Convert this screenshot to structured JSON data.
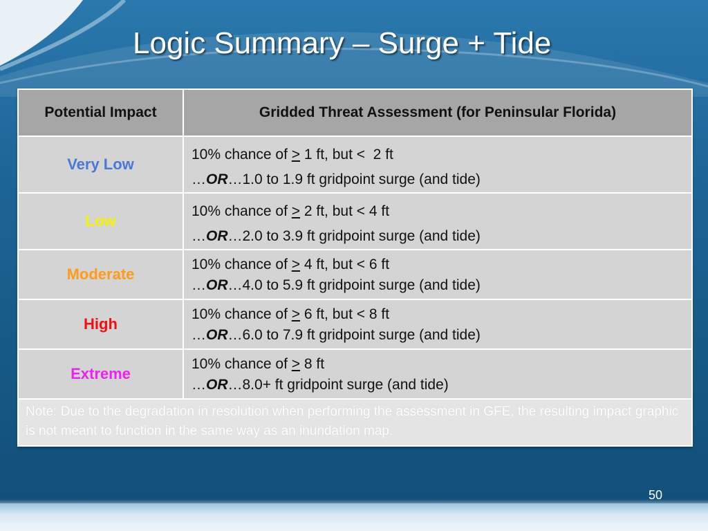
{
  "slide": {
    "title": "Logic Summary – Surge + Tide",
    "page_number": "50"
  },
  "table": {
    "headers": {
      "impact": "Potential Impact",
      "assessment": "Gridded Threat Assessment (for Peninsular Florida)"
    },
    "rows": [
      {
        "level": "Very Low",
        "color": "#4a78d8",
        "line1_pre": "10% chance of ",
        "line1_op": ">",
        "line1_post": " 1 ft, but <  2 ft",
        "line2_pre": "…",
        "line2_or": "OR",
        "line2_post": "…1.0 to 1.9 ft gridpoint surge (and tide)"
      },
      {
        "level": "Low",
        "color": "#f4f400",
        "line1_pre": "10% chance of ",
        "line1_op": ">",
        "line1_post": " 2 ft, but < 4 ft",
        "line2_pre": "…",
        "line2_or": "OR",
        "line2_post": "…2.0 to 3.9 ft gridpoint surge (and tide)"
      },
      {
        "level": "Moderate",
        "color": "#ff9b1a",
        "line1_pre": "10% chance of ",
        "line1_op": ">",
        "line1_post": " 4 ft, but < 6 ft",
        "line2_pre": "…",
        "line2_or": "OR",
        "line2_post": "…4.0 to 5.9 ft gridpoint surge (and tide)"
      },
      {
        "level": "High",
        "color": "#ee1111",
        "line1_pre": "10% chance of ",
        "line1_op": ">",
        "line1_post": " 6 ft, but < 8 ft",
        "line2_pre": "…",
        "line2_or": "OR",
        "line2_post": "…6.0 to 7.9 ft gridpoint surge (and tide)"
      },
      {
        "level": "Extreme",
        "color": "#ee22ee",
        "line1_pre": "10% chance of ",
        "line1_op": ">",
        "line1_post": " 8 ft",
        "line2_pre": "…",
        "line2_or": "OR",
        "line2_post": "…8.0+ ft gridpoint surge (and tide)"
      }
    ],
    "note": "Note: Due to the degradation in resolution when performing the assessment in GFE, the resulting impact graphic is not meant to function in the same way as an inundation map."
  }
}
